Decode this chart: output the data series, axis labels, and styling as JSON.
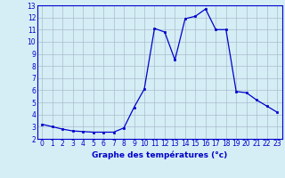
{
  "hours": [
    0,
    1,
    2,
    3,
    4,
    5,
    6,
    7,
    8,
    9,
    10,
    11,
    12,
    13,
    14,
    15,
    16,
    17,
    18,
    19,
    20,
    21,
    22,
    23
  ],
  "temps": [
    3.2,
    3.0,
    2.8,
    2.65,
    2.6,
    2.55,
    2.55,
    2.55,
    2.9,
    4.6,
    6.1,
    11.1,
    10.8,
    8.5,
    11.9,
    12.1,
    12.7,
    11.0,
    11.0,
    5.9,
    5.8,
    5.2,
    4.7,
    4.2
  ],
  "line_color": "#0000cc",
  "marker_color": "#0000cc",
  "bg_color": "#d5eef5",
  "plot_bg_color": "#d5eef5",
  "grid_color": "#aabbcc",
  "xlabel": "Graphe des températures (°c)",
  "xlabel_color": "#0000cc",
  "ylim": [
    2,
    13
  ],
  "xlim": [
    -0.5,
    23.5
  ],
  "yticks": [
    2,
    3,
    4,
    5,
    6,
    7,
    8,
    9,
    10,
    11,
    12,
    13
  ],
  "xticks": [
    0,
    1,
    2,
    3,
    4,
    5,
    6,
    7,
    8,
    9,
    10,
    11,
    12,
    13,
    14,
    15,
    16,
    17,
    18,
    19,
    20,
    21,
    22,
    23
  ],
  "tick_fontsize": 5.5,
  "xlabel_fontsize": 6.5
}
